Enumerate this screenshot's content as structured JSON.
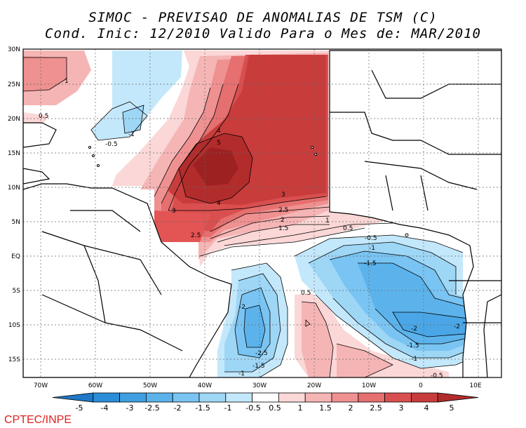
{
  "title": {
    "line1": "SIMOC - PREVISAO DE ANOMALIAS DE TSM (C)",
    "line2": "Cond. Inic: 12/2010   Valido Para o Mes de: MAR/2010"
  },
  "map": {
    "lat_labels": [
      "30N",
      "25N",
      "20N",
      "15N",
      "10N",
      "5N",
      "EQ",
      "5S",
      "10S",
      "15S"
    ],
    "lon_labels": [
      "70W",
      "60W",
      "50W",
      "40W",
      "30W",
      "20W",
      "10W",
      "0",
      "10E"
    ],
    "contour_labels": [
      "1",
      "0.5",
      "-1",
      "-0.5",
      "4",
      "5",
      "4",
      "3",
      "3",
      "2.5",
      "2",
      "1.5",
      "1",
      "0.5",
      "2.5",
      "-0.5",
      "-1",
      "-1.5",
      "0.5",
      "-2",
      "-2",
      "-2",
      "-1.5",
      "-1",
      "-0.5",
      "-2.5",
      "-1.5",
      "-1"
    ],
    "grid": true
  },
  "legend": {
    "values": [
      "-5",
      "-4",
      "-3",
      "-2.5",
      "-2",
      "-1.5",
      "-1",
      "-0.5",
      "0.5",
      "1",
      "1.5",
      "2",
      "2.5",
      "3",
      "4",
      "5"
    ],
    "colors": [
      "#1f78c8",
      "#2b8cd8",
      "#3f9fe0",
      "#5cb3ec",
      "#79c4f2",
      "#9ed6f6",
      "#c4e8fb",
      "#ffffff",
      "#fbd7d7",
      "#f6b5b5",
      "#ef9191",
      "#e66f6f",
      "#d94f4f",
      "#c83c3c",
      "#b22c2c"
    ]
  },
  "credit": "CPTEC/INPE"
}
